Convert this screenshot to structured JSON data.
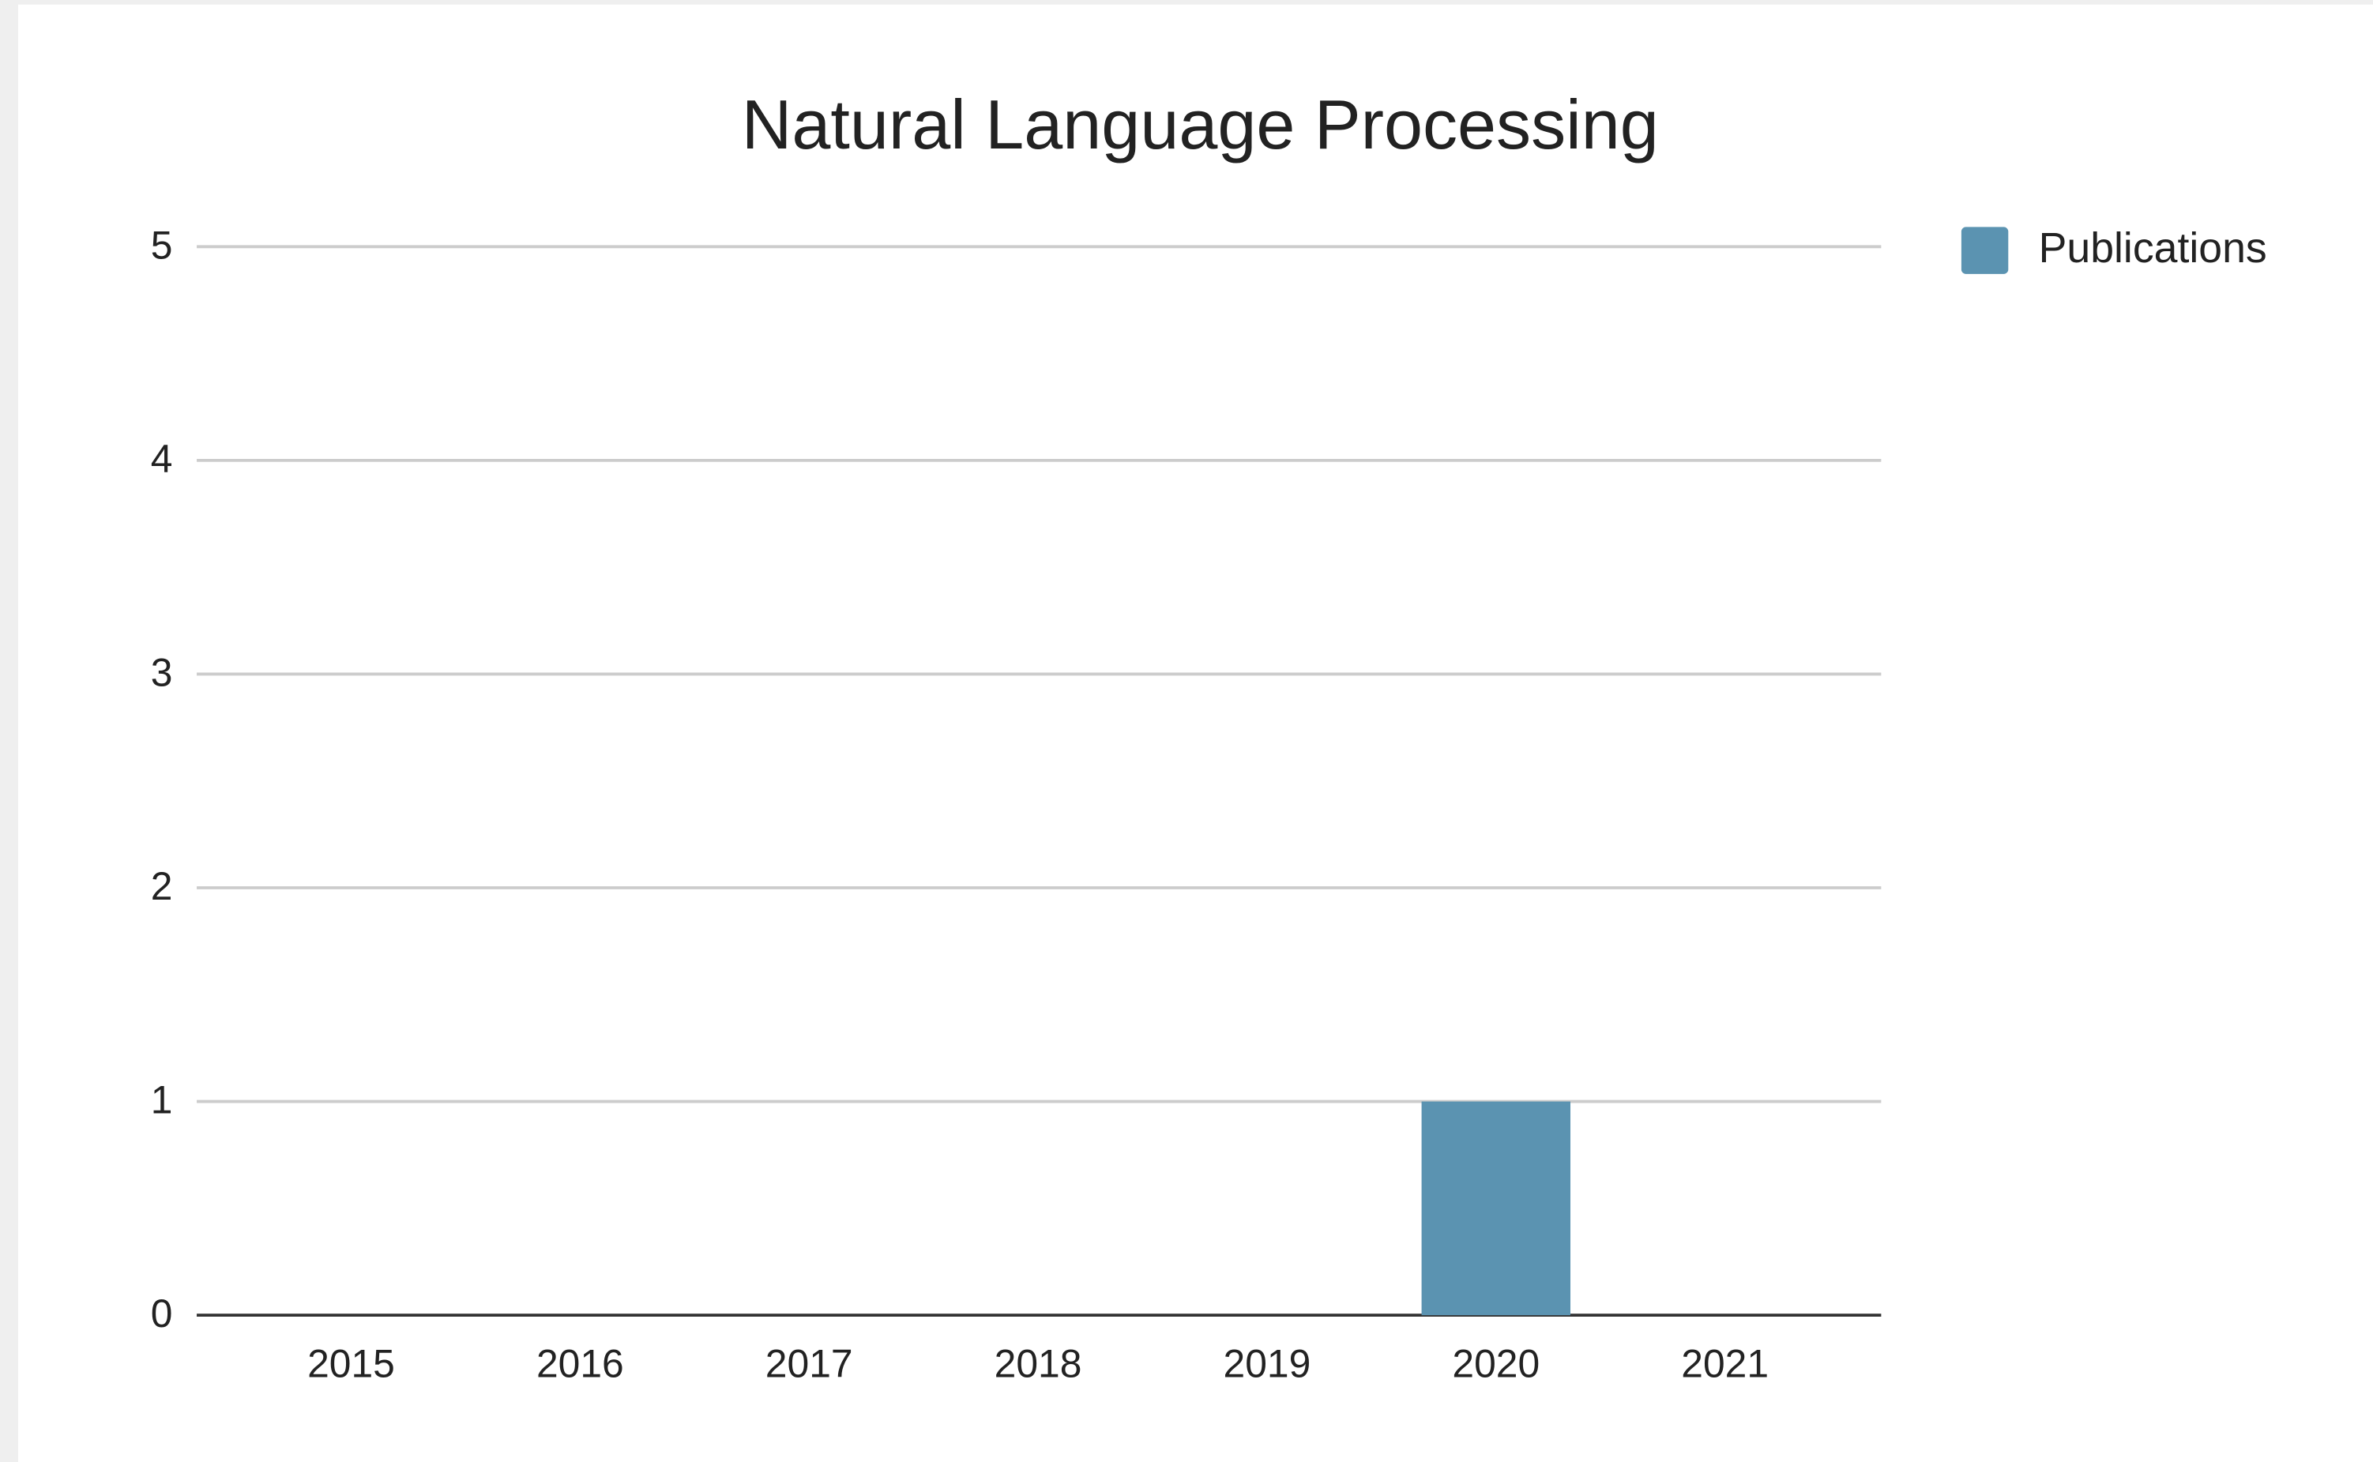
{
  "chart_data": {
    "type": "bar",
    "title": "Natural Language Processing",
    "categories": [
      "2015",
      "2016",
      "2017",
      "2018",
      "2019",
      "2020",
      "2021"
    ],
    "series": [
      {
        "name": "Publications",
        "color": "#5b93b1",
        "values": [
          0,
          0,
          0,
          0,
          0,
          1,
          0
        ]
      }
    ],
    "ylim": [
      0,
      5
    ],
    "yticks": [
      0,
      1,
      2,
      3,
      4,
      5
    ],
    "grid": true,
    "legend": "right"
  }
}
